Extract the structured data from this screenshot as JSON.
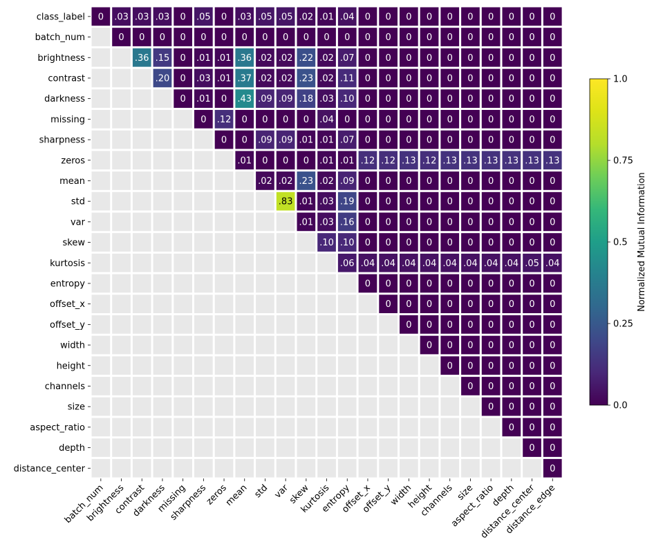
{
  "chart_data": {
    "type": "heatmap",
    "title": "",
    "row_labels": [
      "class_label",
      "batch_num",
      "brightness",
      "contrast",
      "darkness",
      "missing",
      "sharpness",
      "zeros",
      "mean",
      "std",
      "var",
      "skew",
      "kurtosis",
      "entropy",
      "offset_x",
      "offset_y",
      "width",
      "height",
      "channels",
      "size",
      "aspect_ratio",
      "depth",
      "distance_center"
    ],
    "col_labels": [
      "batch_num",
      "brightness",
      "contrast",
      "darkness",
      "missing",
      "sharpness",
      "zeros",
      "mean",
      "std",
      "var",
      "skew",
      "kurtosis",
      "entropy",
      "offset_x",
      "offset_y",
      "width",
      "height",
      "channels",
      "size",
      "aspect_ratio",
      "depth",
      "distance_center",
      "distance_edge"
    ],
    "values": [
      [
        0,
        0.03,
        0.03,
        0.03,
        0,
        0.05,
        0,
        0.03,
        0.05,
        0.05,
        0.02,
        0.01,
        0.04,
        0,
        0,
        0,
        0,
        0,
        0,
        0,
        0,
        0,
        0
      ],
      [
        null,
        0,
        0,
        0,
        0,
        0,
        0,
        0,
        0,
        0,
        0,
        0,
        0,
        0,
        0,
        0,
        0,
        0,
        0,
        0,
        0,
        0,
        0
      ],
      [
        null,
        null,
        0.36,
        0.15,
        0,
        0.01,
        0.01,
        0.36,
        0.02,
        0.02,
        0.22,
        0.02,
        0.07,
        0,
        0,
        0,
        0,
        0,
        0,
        0,
        0,
        0,
        0
      ],
      [
        null,
        null,
        null,
        0.2,
        0,
        0.03,
        0.01,
        0.37,
        0.02,
        0.02,
        0.23,
        0.02,
        0.11,
        0,
        0,
        0,
        0,
        0,
        0,
        0,
        0,
        0,
        0
      ],
      [
        null,
        null,
        null,
        null,
        0,
        0.01,
        0,
        0.43,
        0.09,
        0.09,
        0.18,
        0.03,
        0.1,
        0,
        0,
        0,
        0,
        0,
        0,
        0,
        0,
        0,
        0
      ],
      [
        null,
        null,
        null,
        null,
        null,
        0,
        0.12,
        0,
        0,
        0,
        0,
        0.04,
        0,
        0,
        0,
        0,
        0,
        0,
        0,
        0,
        0,
        0,
        0
      ],
      [
        null,
        null,
        null,
        null,
        null,
        null,
        0,
        0,
        0.09,
        0.09,
        0.01,
        0.01,
        0.07,
        0,
        0,
        0,
        0,
        0,
        0,
        0,
        0,
        0,
        0
      ],
      [
        null,
        null,
        null,
        null,
        null,
        null,
        null,
        0.01,
        0,
        0,
        0,
        0.01,
        0.01,
        0.12,
        0.12,
        0.13,
        0.12,
        0.13,
        0.13,
        0.13,
        0.13,
        0.13,
        0.13
      ],
      [
        null,
        null,
        null,
        null,
        null,
        null,
        null,
        null,
        0.02,
        0.02,
        0.23,
        0.02,
        0.09,
        0,
        0,
        0,
        0,
        0,
        0,
        0,
        0,
        0,
        0
      ],
      [
        null,
        null,
        null,
        null,
        null,
        null,
        null,
        null,
        null,
        0.83,
        0.01,
        0.03,
        0.19,
        0,
        0,
        0,
        0,
        0,
        0,
        0,
        0,
        0,
        0
      ],
      [
        null,
        null,
        null,
        null,
        null,
        null,
        null,
        null,
        null,
        null,
        0.01,
        0.03,
        0.16,
        0,
        0,
        0,
        0,
        0,
        0,
        0,
        0,
        0,
        0
      ],
      [
        null,
        null,
        null,
        null,
        null,
        null,
        null,
        null,
        null,
        null,
        null,
        0.1,
        0.1,
        0,
        0,
        0,
        0,
        0,
        0,
        0,
        0,
        0,
        0
      ],
      [
        null,
        null,
        null,
        null,
        null,
        null,
        null,
        null,
        null,
        null,
        null,
        null,
        0.06,
        0.04,
        0.04,
        0.04,
        0.04,
        0.04,
        0.04,
        0.04,
        0.04,
        0.05,
        0.04
      ],
      [
        null,
        null,
        null,
        null,
        null,
        null,
        null,
        null,
        null,
        null,
        null,
        null,
        null,
        0,
        0,
        0,
        0,
        0,
        0,
        0,
        0,
        0,
        0
      ],
      [
        null,
        null,
        null,
        null,
        null,
        null,
        null,
        null,
        null,
        null,
        null,
        null,
        null,
        null,
        0,
        0,
        0,
        0,
        0,
        0,
        0,
        0,
        0
      ],
      [
        null,
        null,
        null,
        null,
        null,
        null,
        null,
        null,
        null,
        null,
        null,
        null,
        null,
        null,
        null,
        0,
        0,
        0,
        0,
        0,
        0,
        0,
        0
      ],
      [
        null,
        null,
        null,
        null,
        null,
        null,
        null,
        null,
        null,
        null,
        null,
        null,
        null,
        null,
        null,
        null,
        0,
        0,
        0,
        0,
        0,
        0,
        0
      ],
      [
        null,
        null,
        null,
        null,
        null,
        null,
        null,
        null,
        null,
        null,
        null,
        null,
        null,
        null,
        null,
        null,
        null,
        0,
        0,
        0,
        0,
        0,
        0
      ],
      [
        null,
        null,
        null,
        null,
        null,
        null,
        null,
        null,
        null,
        null,
        null,
        null,
        null,
        null,
        null,
        null,
        null,
        null,
        0,
        0,
        0,
        0,
        0
      ],
      [
        null,
        null,
        null,
        null,
        null,
        null,
        null,
        null,
        null,
        null,
        null,
        null,
        null,
        null,
        null,
        null,
        null,
        null,
        null,
        0,
        0,
        0,
        0
      ],
      [
        null,
        null,
        null,
        null,
        null,
        null,
        null,
        null,
        null,
        null,
        null,
        null,
        null,
        null,
        null,
        null,
        null,
        null,
        null,
        null,
        0,
        0,
        0
      ],
      [
        null,
        null,
        null,
        null,
        null,
        null,
        null,
        null,
        null,
        null,
        null,
        null,
        null,
        null,
        null,
        null,
        null,
        null,
        null,
        null,
        null,
        0,
        0
      ],
      [
        null,
        null,
        null,
        null,
        null,
        null,
        null,
        null,
        null,
        null,
        null,
        null,
        null,
        null,
        null,
        null,
        null,
        null,
        null,
        null,
        null,
        null,
        0
      ]
    ],
    "colorbar": {
      "label": "Normalized Mutual Information",
      "range": [
        0,
        1
      ],
      "ticks": [
        0.0,
        0.25,
        0.5,
        0.75,
        1.0
      ],
      "tick_labels": [
        "0.0",
        "0.25",
        "0.5",
        "0.75",
        "1.0"
      ],
      "colormap": "viridis"
    },
    "grid": false,
    "empty_cell_color": "#e8e8e8",
    "cell_border_color": "#ffffff"
  }
}
